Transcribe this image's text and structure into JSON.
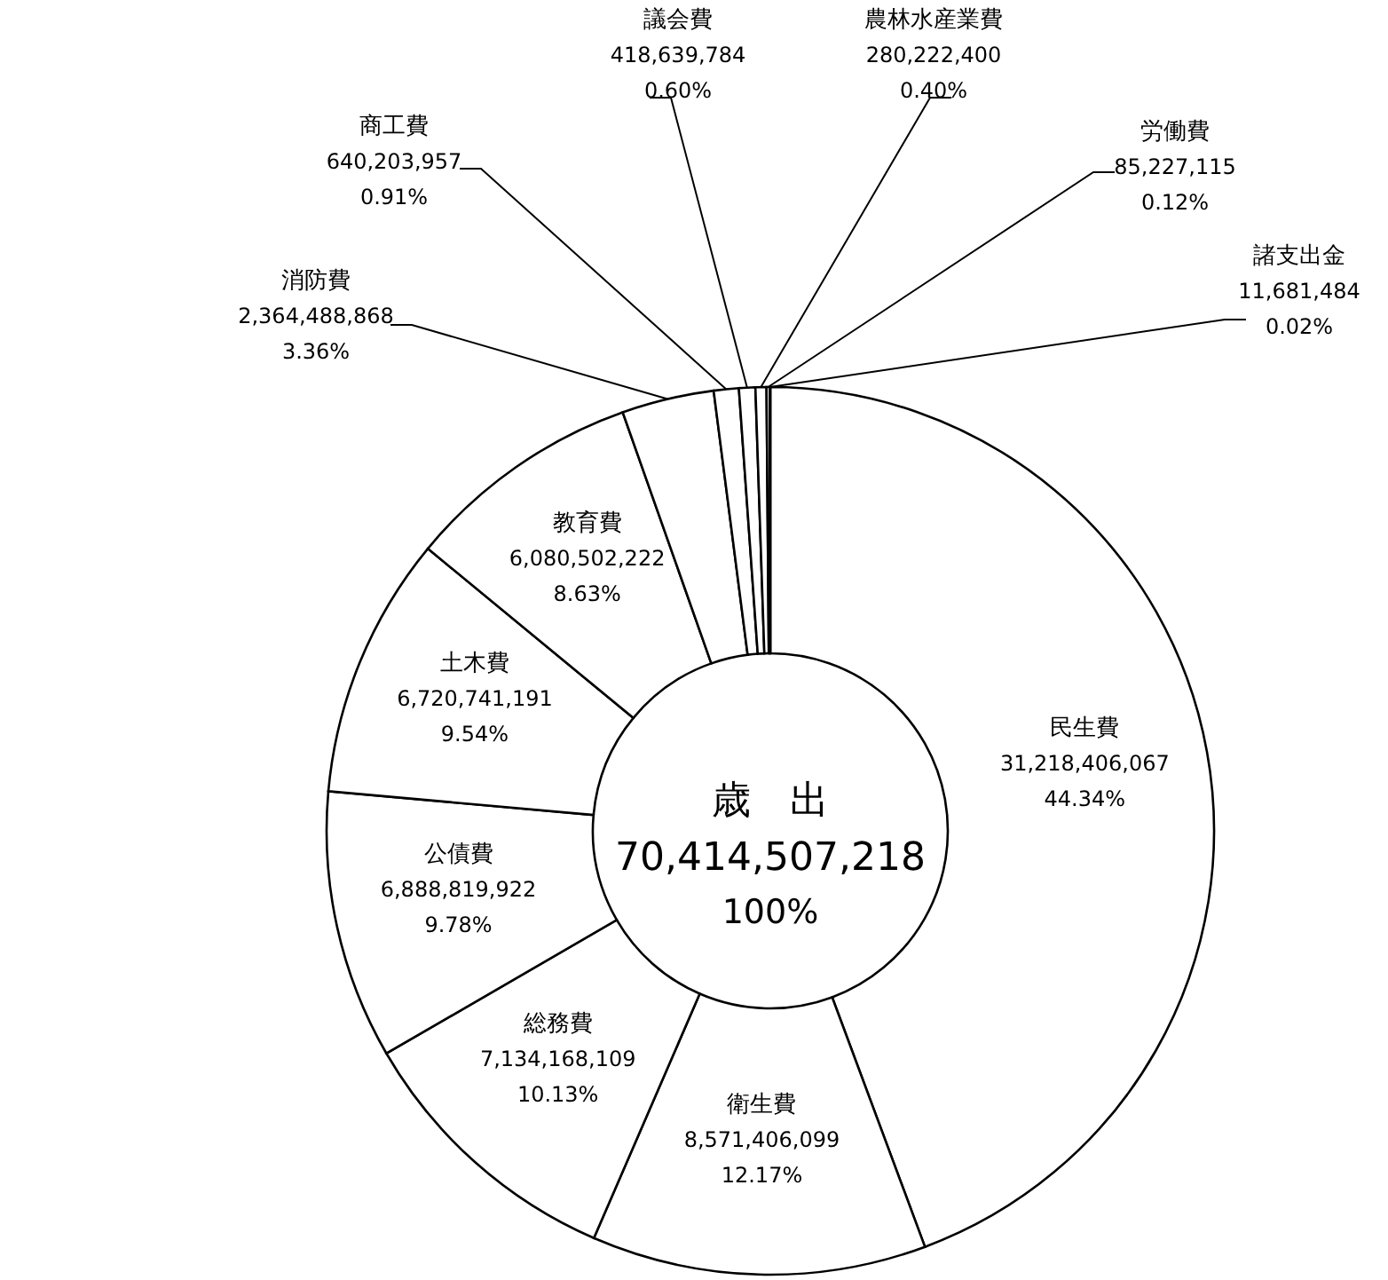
{
  "chart_data": {
    "type": "donut",
    "categories": [
      "民生費",
      "衛生費",
      "総務費",
      "公債費",
      "土木費",
      "教育費",
      "消防費",
      "商工費",
      "議会費",
      "農林水産業費",
      "労働費",
      "諸支出金"
    ],
    "values": [
      31218406067,
      8571406099,
      7134168109,
      6888819922,
      6720741191,
      6080502222,
      2364488868,
      640203957,
      418639784,
      280222400,
      85227115,
      11681484
    ],
    "value_labels": [
      "31,218,406,067\n44.34%",
      "8,571,406,099\n12.17%",
      "7,134,168,109\n10.13%",
      "6,888,819,922\n9.78%",
      "6,720,741,191\n9.54%",
      "6,080,502,222\n8.63%",
      "2,364,488,868\n3.36%",
      "640,203,957\n0.91%",
      "418,639,784\n0.60%",
      "280,222,400\n0.40%",
      "85,227,115\n0.12%",
      "11,681,484\n0.02%"
    ],
    "colors": [
      "#ffffff",
      "#ffffff",
      "#ffffff",
      "#ffffff",
      "#ffffff",
      "#ffffff",
      "#ffffff",
      "#ffffff",
      "#ffffff",
      "#ffffff",
      "#ffffff",
      "#ffffff"
    ],
    "annotations": [
      "歳　出",
      "70,414,507,218",
      "100%"
    ]
  }
}
